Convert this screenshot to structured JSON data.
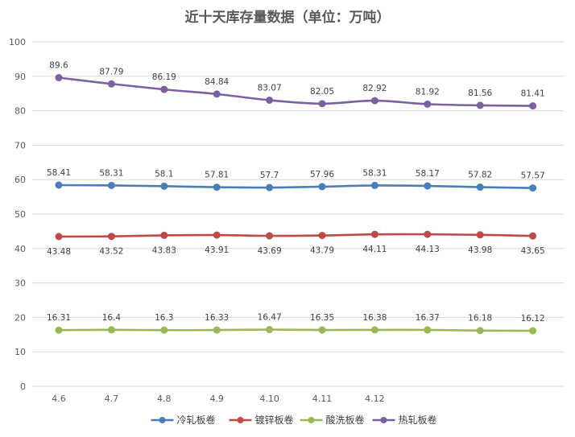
{
  "chart_data": {
    "type": "line",
    "title": "近十天库存量数据（单位：万吨）",
    "xlabel": "",
    "ylabel": "",
    "ylim": [
      0,
      100
    ],
    "yticks": [
      0,
      10,
      20,
      30,
      40,
      50,
      60,
      70,
      80,
      90,
      100
    ],
    "grid": true,
    "legend_position": "bottom",
    "x_tick_labels": [
      "4.6",
      "4.7",
      "4.8",
      "4.9",
      "4.10",
      "4.11",
      "4.12",
      "",
      "",
      ""
    ],
    "series": [
      {
        "name": "冷轧板卷",
        "color": "#4a7ebb",
        "values": [
          58.41,
          58.31,
          58.1,
          57.81,
          57.7,
          57.96,
          58.31,
          58.17,
          57.82,
          57.57
        ],
        "labels": [
          "58.41",
          "58.31",
          "58.1",
          "57.81",
          "57.7",
          "57.96",
          "58.31",
          "58.17",
          "57.82",
          "57.57"
        ],
        "label_position": "above"
      },
      {
        "name": "镀锌板卷",
        "color": "#be4b48",
        "values": [
          43.48,
          43.52,
          43.83,
          43.91,
          43.69,
          43.79,
          44.11,
          44.13,
          43.98,
          43.65
        ],
        "labels": [
          "43.48",
          "43.52",
          "43.83",
          "43.91",
          "43.69",
          "43.79",
          "44.11",
          "44.13",
          "43.98",
          "43.65"
        ],
        "label_position": "below"
      },
      {
        "name": "酸洗板卷",
        "color": "#98b954",
        "values": [
          16.31,
          16.4,
          16.3,
          16.33,
          16.47,
          16.35,
          16.38,
          16.37,
          16.18,
          16.12
        ],
        "labels": [
          "16.31",
          "16.4",
          "16.3",
          "16.33",
          "16.47",
          "16.35",
          "16.38",
          "16.37",
          "16.18",
          "16.12"
        ],
        "label_position": "above"
      },
      {
        "name": "热轧板卷",
        "color": "#7d60a0",
        "values": [
          89.6,
          87.79,
          86.19,
          84.84,
          83.07,
          82.05,
          82.92,
          81.92,
          81.56,
          81.41
        ],
        "labels": [
          "89.6",
          "87.79",
          "86.19",
          "84.84",
          "83.07",
          "82.05",
          "82.92",
          "81.92",
          "81.56",
          "81.41"
        ],
        "label_position": "above"
      }
    ],
    "legend_order": [
      0,
      1,
      2,
      3
    ]
  }
}
